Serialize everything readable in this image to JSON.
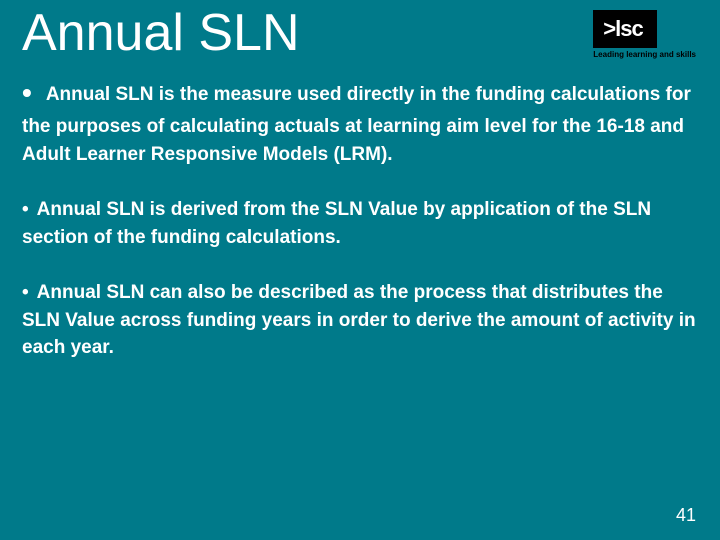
{
  "slide": {
    "title": "Annual SLN",
    "logo": {
      "text": ">lsc",
      "caption": "Leading learning and skills"
    },
    "bullets": [
      "Annual SLN is the measure used directly in the funding calculations  for the purposes of calculating actuals at learning aim level for the 16-18 and Adult Learner Responsive Models (LRM).",
      "Annual SLN is derived from the SLN Value by application of the SLN section of the funding calculations.",
      "Annual SLN can also be described as the process that distributes the SLN Value across funding years in order to derive the amount of activity in each year."
    ],
    "page_number": "41",
    "colors": {
      "background": "#007a8a",
      "text": "#ffffff",
      "logo_bg": "#000000",
      "logo_caption": "#000000"
    },
    "fonts": {
      "title_size": 52,
      "body_size": 19,
      "body_weight": "bold"
    }
  }
}
